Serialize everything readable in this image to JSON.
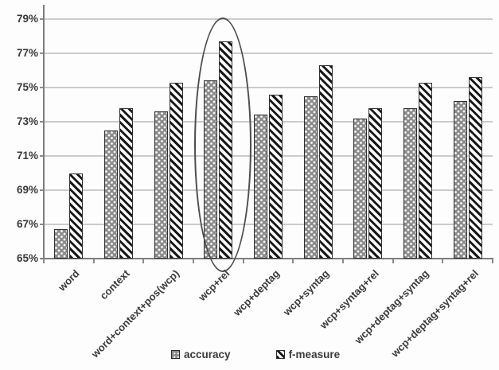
{
  "chart_data": {
    "type": "bar",
    "title": "",
    "xlabel": "",
    "ylabel": "",
    "categories": [
      "word",
      "context",
      "word+context+pos(wcp)",
      "wcp+rel",
      "wcp+deptag",
      "wcp+syntag",
      "wcp+syntag+rel",
      "wcp+deptag+syntag",
      "wcp+deptag+syntag+rel"
    ],
    "series": [
      {
        "name": "accuracy",
        "values": [
          66.7,
          72.5,
          73.6,
          75.4,
          73.4,
          74.5,
          73.2,
          73.8,
          74.2
        ]
      },
      {
        "name": "f-measure",
        "values": [
          70.0,
          73.8,
          75.3,
          77.7,
          74.6,
          76.3,
          73.8,
          75.3,
          75.6
        ]
      }
    ],
    "ylim": [
      65,
      79
    ],
    "yticks": [
      "65%",
      "67%",
      "69%",
      "71%",
      "73%",
      "75%",
      "77%",
      "79%"
    ],
    "grid": true,
    "legend_position": "bottom",
    "annotation": {
      "type": "ellipse",
      "target": "wcp+rel"
    }
  },
  "colors": {
    "accuracy_fill": "#8a8a8a",
    "fmeasure_stripe": "#181818",
    "gridline": "#cbcbcb",
    "axis": "#7e7e7e",
    "text": "#3a3a3a",
    "ellipse": "#4d4d4d"
  }
}
